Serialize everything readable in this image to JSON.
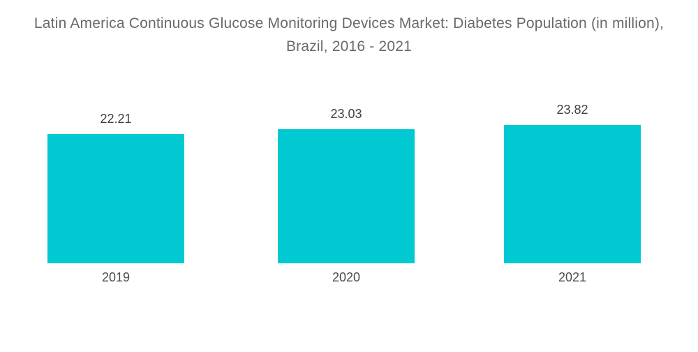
{
  "title": "Latin America Continuous Glucose Monitoring Devices Market: Diabetes Population (in million), Brazil, 2016 - 2021",
  "colors": {
    "bar": "#00C9D2",
    "title_text": "#696969",
    "value_text": "#404040",
    "axis_text": "#4C4C4C",
    "background": "#FFFFFF"
  },
  "chart_data": {
    "type": "bar",
    "title": "Latin America Continuous Glucose Monitoring Devices Market: Diabetes Population (in million), Brazil, 2016 - 2021",
    "categories": [
      "2019",
      "2020",
      "2021"
    ],
    "values": [
      22.21,
      23.03,
      23.82
    ],
    "value_labels": [
      "22.21",
      "23.03",
      "23.82"
    ],
    "xlabel": "",
    "ylabel": "",
    "ylim": [
      0,
      30
    ],
    "grid": false,
    "legend_position": "none",
    "bar_color": "#00C9D2",
    "axes_visible": false
  },
  "bars": [
    {
      "category": "2019",
      "value_label": "22.21"
    },
    {
      "category": "2020",
      "value_label": "23.03"
    },
    {
      "category": "2021",
      "value_label": "23.82"
    }
  ]
}
